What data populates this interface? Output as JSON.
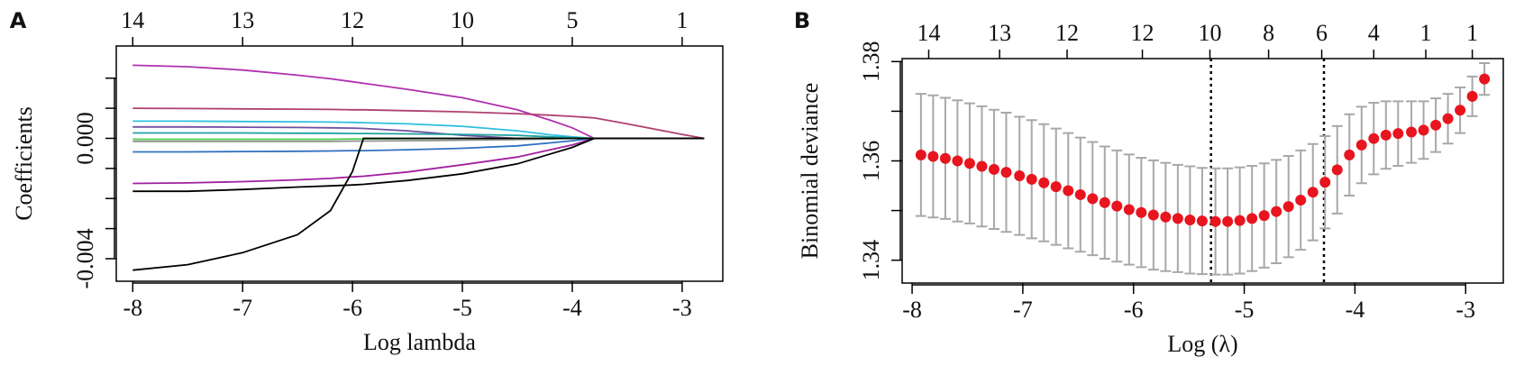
{
  "chart_data": [
    {
      "type": "line",
      "label": "A",
      "xlabel": "Log lambda",
      "ylabel": "Coefficients",
      "xlim": [
        -8.15,
        -2.63
      ],
      "ylim": [
        -0.00475,
        0.00307
      ],
      "xticks": [
        -8,
        -7,
        -6,
        -5,
        -4,
        -3
      ],
      "yticks": [
        {
          "value": -0.004,
          "label": "-0.004"
        },
        {
          "value": 0,
          "label": "0.000"
        }
      ],
      "yminorticks": [
        0.002,
        0.001,
        -0.001,
        -0.002,
        -0.003
      ],
      "x2ticks": [
        {
          "value": -8,
          "label": "14"
        },
        {
          "value": -7,
          "label": "13"
        },
        {
          "value": -6,
          "label": "12"
        },
        {
          "value": -5,
          "label": "10"
        },
        {
          "value": -4,
          "label": "5"
        },
        {
          "value": -3,
          "label": "1"
        }
      ],
      "x": [
        -8,
        -7.5,
        -7,
        -6.5,
        -6.2,
        -6,
        -5.9,
        -5.5,
        -5,
        -4.5,
        -4.2,
        -4,
        -3.8,
        -3.5,
        -3,
        -2.8
      ],
      "series": [
        {
          "color": "#b030b0",
          "values": [
            0.00243,
            0.00238,
            0.00227,
            0.0021,
            0.00198,
            0.00188,
            0.00183,
            0.00163,
            0.00135,
            0.00095,
            0.0006,
            0.00035,
            0,
            0,
            0,
            0
          ]
        },
        {
          "color": "#b04070",
          "values": [
            0.001,
            0.00099,
            0.00098,
            0.00097,
            0.00096,
            0.00095,
            0.00095,
            0.00092,
            0.00088,
            0.00082,
            0.00077,
            0.00073,
            0.00068,
            0.00048,
            0.00013,
            0
          ]
        },
        {
          "color": "#30c0e0",
          "values": [
            0.00057,
            0.00057,
            0.00056,
            0.00055,
            0.00054,
            0.00053,
            0.00052,
            0.00048,
            0.0004,
            0.00025,
            0.00012,
            5e-05,
            0,
            0,
            0,
            0
          ]
        },
        {
          "color": "#7050a0",
          "values": [
            0.00038,
            0.00038,
            0.00037,
            0.00036,
            0.00035,
            0.00034,
            0.00033,
            0.00025,
            0.0001,
            0,
            0,
            0,
            0,
            0,
            0,
            0
          ]
        },
        {
          "color": "#20a0a0",
          "values": [
            0.00018,
            0.00018,
            0.00018,
            0.00017,
            0.00017,
            0.00016,
            0.00016,
            0.00015,
            0.00013,
            0.0001,
            5e-05,
            2e-05,
            0,
            0,
            0,
            0
          ]
        },
        {
          "color": "#909090",
          "values": [
            -0.0001,
            -0.0001,
            -0.0001,
            -0.0001,
            -0.0001,
            -9e-05,
            -9e-05,
            -8e-05,
            -6e-05,
            -4e-05,
            -2e-05,
            0,
            0,
            0,
            0,
            0
          ]
        },
        {
          "color": "#50d050",
          "values": [
            -3e-05,
            -3e-05,
            -3e-05,
            -3e-05,
            -3e-05,
            -2e-05,
            -2e-05,
            -1e-05,
            0,
            0,
            0,
            0,
            0,
            0,
            0,
            0
          ]
        },
        {
          "color": "#3070c0",
          "values": [
            -0.00045,
            -0.00045,
            -0.00044,
            -0.00043,
            -0.00042,
            -0.00041,
            -0.00041,
            -0.00038,
            -0.00033,
            -0.00025,
            -0.00015,
            -8e-05,
            0,
            0,
            0,
            0
          ]
        },
        {
          "color": "#a020a0",
          "values": [
            -0.0015,
            -0.00148,
            -0.00144,
            -0.00138,
            -0.00133,
            -0.00128,
            -0.00126,
            -0.00112,
            -0.00088,
            -0.00062,
            -0.00038,
            -0.00022,
            0,
            0,
            0,
            0
          ]
        },
        {
          "color": "#000000",
          "values": [
            -0.00176,
            -0.00176,
            -0.0017,
            -0.00162,
            -0.00158,
            -0.00155,
            -0.00153,
            -0.0014,
            -0.00118,
            -0.00085,
            -0.00052,
            -0.0003,
            0,
            0,
            0,
            0
          ]
        },
        {
          "color": "#000000",
          "values": [
            -0.00438,
            -0.0042,
            -0.0038,
            -0.0032,
            -0.0024,
            -0.0011,
            0,
            0,
            0,
            0,
            0,
            0,
            0,
            0,
            0,
            0
          ]
        }
      ]
    },
    {
      "type": "errorbar",
      "label": "B",
      "xlabel": "Log (λ)",
      "ylabel": "Binomial deviance",
      "xlim": [
        -8.09,
        -2.66
      ],
      "ylim": [
        1.3354,
        1.3806
      ],
      "xticks": [
        -8,
        -7,
        -6,
        -5,
        -4,
        -3
      ],
      "yticks": [
        1.34,
        1.36,
        1.38
      ],
      "yminorticks": [
        1.35,
        1.37
      ],
      "x2ticks": [
        {
          "value": -7.85,
          "label": "14"
        },
        {
          "value": -7.21,
          "label": "13"
        },
        {
          "value": -6.6,
          "label": "12"
        },
        {
          "value": -5.92,
          "label": "12"
        },
        {
          "value": -5.31,
          "label": "10"
        },
        {
          "value": -4.78,
          "label": "8"
        },
        {
          "value": -4.3,
          "label": "6"
        },
        {
          "value": -3.83,
          "label": "4"
        },
        {
          "value": -3.36,
          "label": "1"
        },
        {
          "value": -2.94,
          "label": "1"
        }
      ],
      "vlines": [
        -5.3,
        -4.28
      ],
      "color": "#e8141e",
      "errorcolor": "#a8a8a8",
      "x": [
        -7.92,
        -7.81,
        -7.7,
        -7.59,
        -7.48,
        -7.37,
        -7.26,
        -7.15,
        -7.03,
        -6.92,
        -6.81,
        -6.7,
        -6.59,
        -6.48,
        -6.37,
        -6.26,
        -6.15,
        -6.04,
        -5.93,
        -5.82,
        -5.71,
        -5.6,
        -5.49,
        -5.38,
        -5.26,
        -5.15,
        -5.04,
        -4.93,
        -4.82,
        -4.71,
        -4.6,
        -4.49,
        -4.38,
        -4.27,
        -4.16,
        -4.05,
        -3.94,
        -3.83,
        -3.72,
        -3.61,
        -3.49,
        -3.38,
        -3.27,
        -3.16,
        -3.05,
        -2.94,
        -2.83
      ],
      "values": [
        1.3612,
        1.3609,
        1.3605,
        1.36,
        1.3595,
        1.3589,
        1.3583,
        1.3577,
        1.357,
        1.3563,
        1.3556,
        1.3548,
        1.354,
        1.3532,
        1.3524,
        1.3516,
        1.3509,
        1.3502,
        1.3496,
        1.3491,
        1.3487,
        1.3484,
        1.3481,
        1.3479,
        1.3478,
        1.3478,
        1.348,
        1.3484,
        1.349,
        1.3498,
        1.3508,
        1.3521,
        1.3537,
        1.3557,
        1.3582,
        1.3612,
        1.3632,
        1.3645,
        1.3652,
        1.3655,
        1.3658,
        1.3662,
        1.3672,
        1.3685,
        1.3702,
        1.373,
        1.3765
      ],
      "errors": [
        0.0123,
        0.0123,
        0.0122,
        0.0122,
        0.0121,
        0.0121,
        0.012,
        0.012,
        0.0119,
        0.0119,
        0.0118,
        0.0117,
        0.0116,
        0.0115,
        0.0114,
        0.0113,
        0.0112,
        0.0111,
        0.011,
        0.011,
        0.0109,
        0.0108,
        0.0108,
        0.0107,
        0.0107,
        0.0107,
        0.0107,
        0.0106,
        0.0105,
        0.0104,
        0.0102,
        0.01,
        0.0097,
        0.0093,
        0.0088,
        0.0082,
        0.0077,
        0.0072,
        0.0068,
        0.0065,
        0.0062,
        0.0058,
        0.0054,
        0.005,
        0.0046,
        0.004,
        0.0032
      ]
    }
  ]
}
